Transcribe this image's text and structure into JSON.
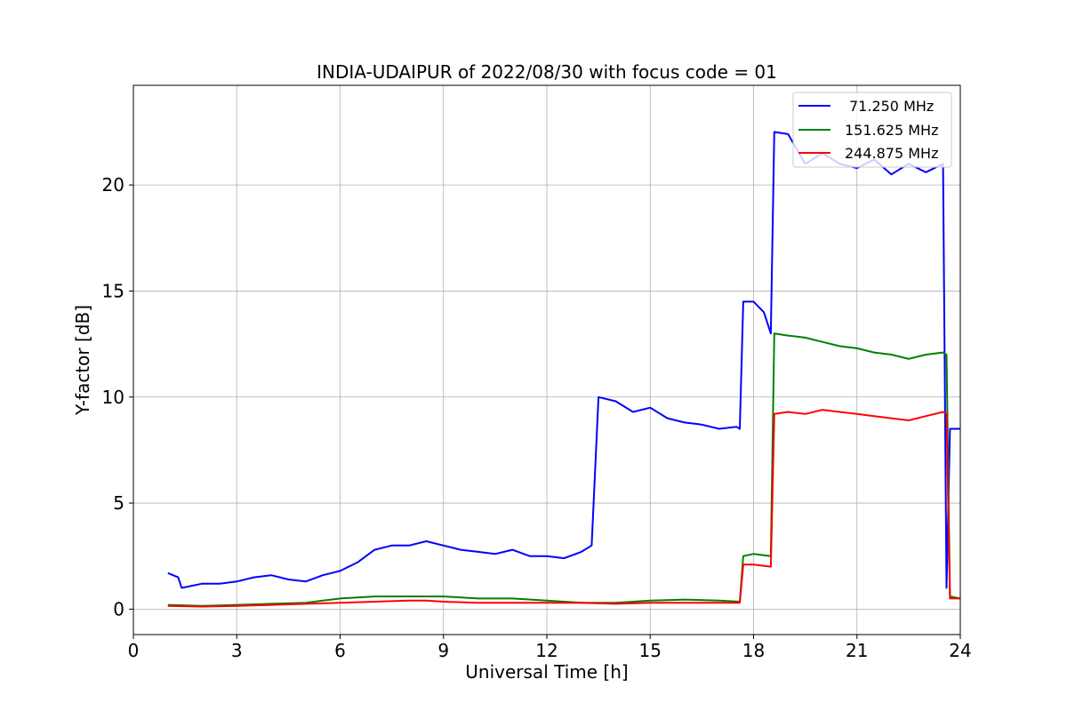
{
  "chart_data": {
    "type": "line",
    "title": "INDIA-UDAIPUR of 2022/08/30 with focus code = 01",
    "xlabel": "Universal Time [h]",
    "ylabel": "Y-factor [dB]",
    "xlim": [
      0,
      24
    ],
    "ylim": [
      -1.2,
      24.7
    ],
    "xticks": [
      0,
      3,
      6,
      9,
      12,
      15,
      18,
      21,
      24
    ],
    "yticks": [
      0,
      5,
      10,
      15,
      20
    ],
    "grid": true,
    "legend_position": "top-right",
    "series": [
      {
        "name": "71.250 MHz",
        "color": "#0000ff",
        "x": [
          1.0,
          1.3,
          1.4,
          2.0,
          2.5,
          3.0,
          3.5,
          4.0,
          4.5,
          5.0,
          5.5,
          6.0,
          6.5,
          7.0,
          7.5,
          8.0,
          8.5,
          9.0,
          9.5,
          10.0,
          10.5,
          11.0,
          11.5,
          12.0,
          12.5,
          13.0,
          13.3,
          13.5,
          14.0,
          14.5,
          15.0,
          15.5,
          16.0,
          16.5,
          17.0,
          17.5,
          17.6,
          17.7,
          18.0,
          18.3,
          18.5,
          18.6,
          19.0,
          19.5,
          20.0,
          20.5,
          21.0,
          21.5,
          22.0,
          22.5,
          23.0,
          23.5,
          23.6,
          23.7,
          24.0
        ],
        "y": [
          1.7,
          1.5,
          1.0,
          1.2,
          1.2,
          1.3,
          1.5,
          1.6,
          1.4,
          1.3,
          1.6,
          1.8,
          2.2,
          2.8,
          3.0,
          3.0,
          3.2,
          3.0,
          2.8,
          2.7,
          2.6,
          2.8,
          2.5,
          2.5,
          2.4,
          2.7,
          3.0,
          10.0,
          9.8,
          9.3,
          9.5,
          9.0,
          8.8,
          8.7,
          8.5,
          8.6,
          8.5,
          14.5,
          14.5,
          14.0,
          13.0,
          22.5,
          22.4,
          21.0,
          21.5,
          21.0,
          20.8,
          21.2,
          20.5,
          21.0,
          20.6,
          21.0,
          1.0,
          8.5,
          8.5
        ]
      },
      {
        "name": "151.625 MHz",
        "color": "#008000",
        "x": [
          1.0,
          2.0,
          3.0,
          4.0,
          5.0,
          5.5,
          6.0,
          7.0,
          8.0,
          9.0,
          10.0,
          11.0,
          12.0,
          13.0,
          14.0,
          15.0,
          16.0,
          17.0,
          17.6,
          17.7,
          18.0,
          18.5,
          18.6,
          19.0,
          19.5,
          20.0,
          20.5,
          21.0,
          21.5,
          22.0,
          22.5,
          23.0,
          23.5,
          23.6,
          23.7,
          24.0
        ],
        "y": [
          0.2,
          0.15,
          0.2,
          0.25,
          0.3,
          0.4,
          0.5,
          0.6,
          0.6,
          0.6,
          0.5,
          0.5,
          0.4,
          0.3,
          0.3,
          0.4,
          0.45,
          0.4,
          0.35,
          2.5,
          2.6,
          2.5,
          13.0,
          12.9,
          12.8,
          12.6,
          12.4,
          12.3,
          12.1,
          12.0,
          11.8,
          12.0,
          12.1,
          12.0,
          0.6,
          0.5
        ]
      },
      {
        "name": "244.875 MHz",
        "color": "#ff0000",
        "x": [
          1.0,
          2.0,
          3.0,
          4.0,
          5.0,
          6.0,
          7.0,
          8.0,
          8.5,
          9.0,
          10.0,
          11.0,
          12.0,
          13.0,
          14.0,
          15.0,
          16.0,
          17.0,
          17.6,
          17.7,
          18.0,
          18.5,
          18.6,
          19.0,
          19.5,
          20.0,
          20.5,
          21.0,
          21.5,
          22.0,
          22.5,
          23.0,
          23.5,
          23.6,
          23.7,
          24.0
        ],
        "y": [
          0.15,
          0.12,
          0.15,
          0.2,
          0.25,
          0.3,
          0.35,
          0.4,
          0.4,
          0.35,
          0.3,
          0.3,
          0.3,
          0.3,
          0.25,
          0.3,
          0.3,
          0.3,
          0.3,
          2.1,
          2.1,
          2.0,
          9.2,
          9.3,
          9.2,
          9.4,
          9.3,
          9.2,
          9.1,
          9.0,
          8.9,
          9.1,
          9.3,
          9.2,
          0.5,
          0.5
        ]
      }
    ]
  }
}
